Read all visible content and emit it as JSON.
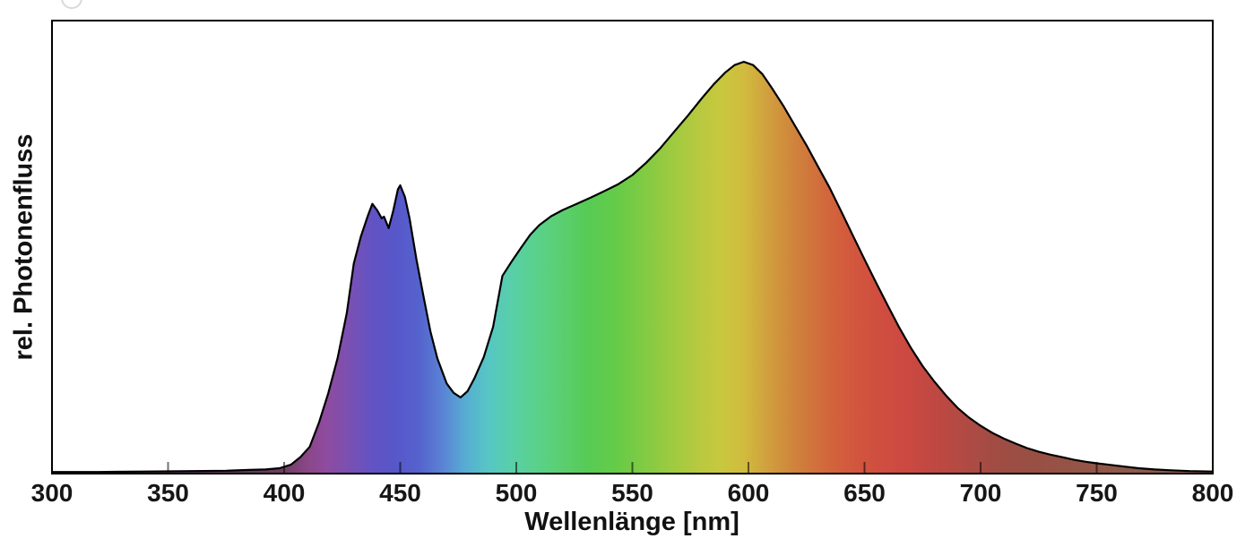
{
  "figure": {
    "background": "#ffffff",
    "axis_color": "#000000",
    "tick_label_color": "#161616",
    "artifact_circle_color": "#d9d9d9"
  },
  "chart_data": {
    "type": "area",
    "title": "",
    "xlabel": "Wellenlänge [nm]",
    "ylabel": "rel. Photonenfluss",
    "xlim": [
      300,
      800
    ],
    "ylim": [
      0,
      1.1
    ],
    "grid": false,
    "legend": "none",
    "x_ticks": [
      {
        "value": 300,
        "label": "300"
      },
      {
        "value": 350,
        "label": "350"
      },
      {
        "value": 400,
        "label": "400"
      },
      {
        "value": 450,
        "label": "450"
      },
      {
        "value": 500,
        "label": "500"
      },
      {
        "value": 550,
        "label": "550"
      },
      {
        "value": 600,
        "label": "600"
      },
      {
        "value": 650,
        "label": "650"
      },
      {
        "value": 700,
        "label": "700"
      },
      {
        "value": 750,
        "label": "750"
      },
      {
        "value": 800,
        "label": "800"
      }
    ],
    "interior_tick_values": [
      350,
      400,
      450,
      500,
      550,
      600,
      650,
      700,
      750
    ],
    "y_ticks": [],
    "outline_color": "#000000",
    "tick_overlay_color": "rgba(0,0,0,0.55)",
    "series": [
      {
        "name": "",
        "points": [
          [
            300,
            0.004
          ],
          [
            320,
            0.004
          ],
          [
            340,
            0.005
          ],
          [
            360,
            0.006
          ],
          [
            375,
            0.007
          ],
          [
            385,
            0.009
          ],
          [
            392,
            0.01
          ],
          [
            398,
            0.013
          ],
          [
            403,
            0.022
          ],
          [
            407,
            0.04
          ],
          [
            411,
            0.065
          ],
          [
            415,
            0.124
          ],
          [
            419,
            0.195
          ],
          [
            423,
            0.28
          ],
          [
            427,
            0.39
          ],
          [
            430,
            0.51
          ],
          [
            433,
            0.575
          ],
          [
            436,
            0.625
          ],
          [
            438,
            0.655
          ],
          [
            440,
            0.64
          ],
          [
            442,
            0.62
          ],
          [
            443,
            0.624
          ],
          [
            445,
            0.596
          ],
          [
            447,
            0.638
          ],
          [
            449,
            0.69
          ],
          [
            450,
            0.7
          ],
          [
            452,
            0.672
          ],
          [
            454,
            0.62
          ],
          [
            457,
            0.52
          ],
          [
            460,
            0.431
          ],
          [
            463,
            0.345
          ],
          [
            466,
            0.28
          ],
          [
            470,
            0.219
          ],
          [
            473,
            0.196
          ],
          [
            476,
            0.185
          ],
          [
            479,
            0.2
          ],
          [
            482,
            0.232
          ],
          [
            486,
            0.283
          ],
          [
            490,
            0.356
          ],
          [
            494,
            0.48
          ],
          [
            498,
            0.515
          ],
          [
            502,
            0.548
          ],
          [
            506,
            0.58
          ],
          [
            510,
            0.604
          ],
          [
            515,
            0.625
          ],
          [
            520,
            0.64
          ],
          [
            526,
            0.655
          ],
          [
            532,
            0.67
          ],
          [
            538,
            0.686
          ],
          [
            544,
            0.703
          ],
          [
            550,
            0.725
          ],
          [
            556,
            0.755
          ],
          [
            562,
            0.79
          ],
          [
            568,
            0.83
          ],
          [
            574,
            0.87
          ],
          [
            580,
            0.912
          ],
          [
            585,
            0.945
          ],
          [
            590,
            0.974
          ],
          [
            594,
            0.992
          ],
          [
            598,
            1.0
          ],
          [
            602,
            0.992
          ],
          [
            606,
            0.97
          ],
          [
            610,
            0.937
          ],
          [
            615,
            0.893
          ],
          [
            620,
            0.845
          ],
          [
            625,
            0.797
          ],
          [
            630,
            0.745
          ],
          [
            635,
            0.694
          ],
          [
            640,
            0.636
          ],
          [
            645,
            0.578
          ],
          [
            650,
            0.52
          ],
          [
            655,
            0.463
          ],
          [
            660,
            0.408
          ],
          [
            665,
            0.354
          ],
          [
            670,
            0.305
          ],
          [
            675,
            0.261
          ],
          [
            680,
            0.224
          ],
          [
            685,
            0.19
          ],
          [
            690,
            0.16
          ],
          [
            695,
            0.136
          ],
          [
            700,
            0.116
          ],
          [
            705,
            0.099
          ],
          [
            710,
            0.085
          ],
          [
            715,
            0.073
          ],
          [
            720,
            0.062
          ],
          [
            725,
            0.053
          ],
          [
            730,
            0.046
          ],
          [
            735,
            0.04
          ],
          [
            740,
            0.034
          ],
          [
            745,
            0.029
          ],
          [
            750,
            0.025
          ],
          [
            756,
            0.021
          ],
          [
            762,
            0.017
          ],
          [
            768,
            0.013
          ],
          [
            775,
            0.01
          ],
          [
            782,
            0.008
          ],
          [
            790,
            0.006
          ],
          [
            800,
            0.005
          ]
        ]
      }
    ],
    "gradient_stops": [
      {
        "wavelength": 300,
        "color": "#4a3147"
      },
      {
        "wavelength": 380,
        "color": "#5c3a55"
      },
      {
        "wavelength": 400,
        "color": "#6f3f63"
      },
      {
        "wavelength": 410,
        "color": "#8a4787"
      },
      {
        "wavelength": 418,
        "color": "#8f4b9f"
      },
      {
        "wavelength": 428,
        "color": "#7a50b2"
      },
      {
        "wavelength": 438,
        "color": "#6253c4"
      },
      {
        "wavelength": 448,
        "color": "#5757ca"
      },
      {
        "wavelength": 458,
        "color": "#5562cd"
      },
      {
        "wavelength": 468,
        "color": "#5a82d5"
      },
      {
        "wavelength": 478,
        "color": "#57add3"
      },
      {
        "wavelength": 488,
        "color": "#57c6c4"
      },
      {
        "wavelength": 498,
        "color": "#58cfa8"
      },
      {
        "wavelength": 508,
        "color": "#5ad18d"
      },
      {
        "wavelength": 518,
        "color": "#5bcf74"
      },
      {
        "wavelength": 530,
        "color": "#57cb57"
      },
      {
        "wavelength": 542,
        "color": "#63cb48"
      },
      {
        "wavelength": 554,
        "color": "#7ecb43"
      },
      {
        "wavelength": 566,
        "color": "#9cca40"
      },
      {
        "wavelength": 578,
        "color": "#b6c93f"
      },
      {
        "wavelength": 588,
        "color": "#c8c83e"
      },
      {
        "wavelength": 598,
        "color": "#d1bb3e"
      },
      {
        "wavelength": 608,
        "color": "#d1a03e"
      },
      {
        "wavelength": 620,
        "color": "#d0833c"
      },
      {
        "wavelength": 632,
        "color": "#d16a3c"
      },
      {
        "wavelength": 644,
        "color": "#d2583d"
      },
      {
        "wavelength": 656,
        "color": "#d04e3f"
      },
      {
        "wavelength": 668,
        "color": "#cb4941"
      },
      {
        "wavelength": 680,
        "color": "#c04842"
      },
      {
        "wavelength": 692,
        "color": "#b24a43"
      },
      {
        "wavelength": 704,
        "color": "#a34c44"
      },
      {
        "wavelength": 716,
        "color": "#9a4e44"
      },
      {
        "wavelength": 730,
        "color": "#975145"
      },
      {
        "wavelength": 745,
        "color": "#935547"
      },
      {
        "wavelength": 760,
        "color": "#8f584a"
      },
      {
        "wavelength": 780,
        "color": "#8a5b4e"
      },
      {
        "wavelength": 800,
        "color": "#875d51"
      }
    ]
  }
}
